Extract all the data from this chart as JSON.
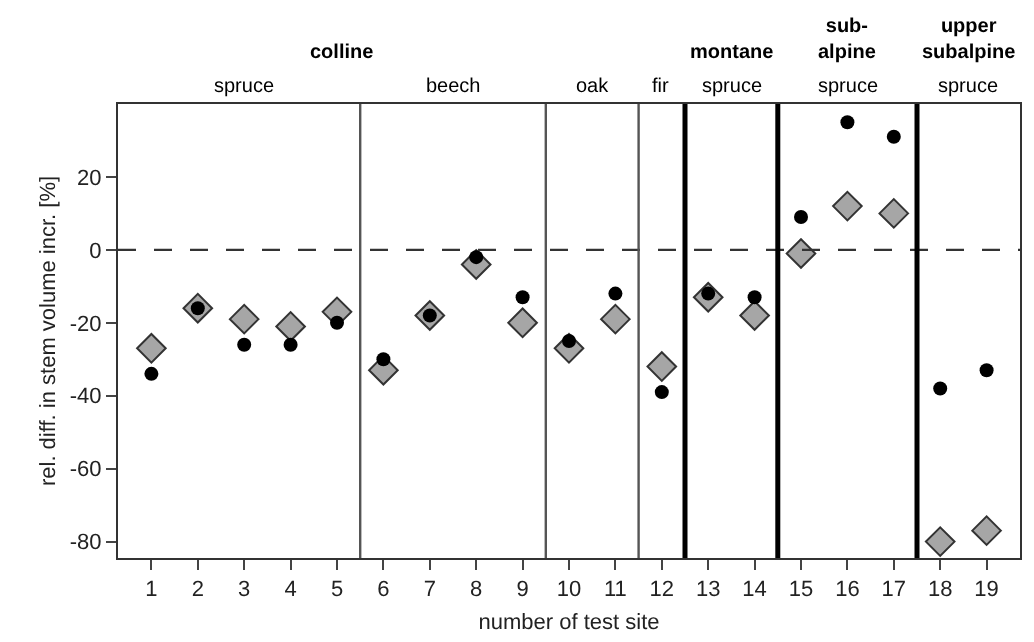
{
  "chart_data": {
    "type": "scatter",
    "xlabel": "number of test site",
    "ylabel": "rel. diff. in stem volume incr. [%]",
    "x": [
      1,
      2,
      3,
      4,
      5,
      6,
      7,
      8,
      9,
      10,
      11,
      12,
      13,
      14,
      15,
      16,
      17,
      18,
      19
    ],
    "series": [
      {
        "color": "#a6a6a6",
        "marker": "diamond",
        "values": [
          -27,
          -16,
          -19,
          -21,
          -17,
          -33,
          -18,
          -4,
          -20,
          -27,
          -19,
          -32,
          -13,
          -18,
          -1,
          12,
          10,
          -80,
          -77
        ]
      },
      {
        "color": "#000000",
        "marker": "circle",
        "values": [
          -34,
          -16,
          -26,
          -26,
          -20,
          -30,
          -18,
          -2,
          -13,
          -25,
          -12,
          -39,
          -12,
          -13,
          9,
          35,
          31,
          -38,
          -33
        ]
      }
    ],
    "xlim": [
      0.28,
      19.72
    ],
    "ylim": [
      -84.5,
      40
    ],
    "xticks": [
      1,
      2,
      3,
      4,
      5,
      6,
      7,
      8,
      9,
      10,
      11,
      12,
      13,
      14,
      15,
      16,
      17,
      18,
      19
    ],
    "yticks": [
      -80,
      -60,
      -40,
      -20,
      0,
      20
    ],
    "ref_lines": [
      {
        "axis": "y",
        "value": 0,
        "line_style": "dashed",
        "color": "#333333"
      },
      {
        "axis": "x",
        "value": 5.5,
        "color": "#555555"
      },
      {
        "axis": "x",
        "value": 9.5,
        "color": "#555555"
      },
      {
        "axis": "x",
        "value": 11.5,
        "color": "#555555"
      },
      {
        "axis": "x",
        "value": 12.5,
        "color": "#000000"
      },
      {
        "axis": "x",
        "value": 14.5,
        "color": "#000000"
      },
      {
        "axis": "x",
        "value": 17.5,
        "color": "#000000"
      }
    ],
    "annotations": [
      "colline",
      "montane",
      "sub-\nalpine",
      "upper\nsubalpine",
      "spruce",
      "beech",
      "oak",
      "fir",
      "spruce",
      "spruce",
      "spruce"
    ]
  }
}
